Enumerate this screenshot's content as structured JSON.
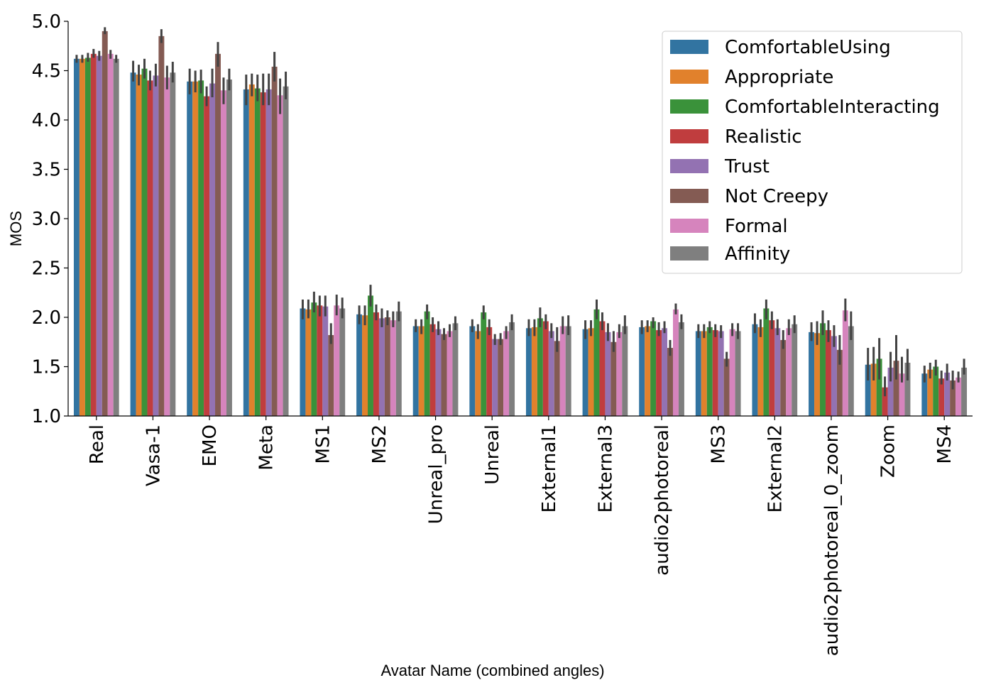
{
  "chart_data": {
    "type": "bar",
    "title": "",
    "xlabel": "Avatar Name (combined angles)",
    "ylabel": "MOS",
    "ylim": [
      1.0,
      5.0
    ],
    "yticks": [
      "1.0",
      "1.5",
      "2.0",
      "2.5",
      "3.0",
      "3.5",
      "4.0",
      "4.5",
      "5.0"
    ],
    "legend_position": "top-right",
    "categories": [
      "Real",
      "Vasa-1",
      "EMO",
      "Meta",
      "MS1",
      "MS2",
      "Unreal_pro",
      "Unreal",
      "External1",
      "External3",
      "audio2photoreal",
      "MS3",
      "External2",
      "audio2photoreal_0_zoom",
      "Zoom",
      "MS4"
    ],
    "series": [
      {
        "name": "ComfortableUsing",
        "color": "#3274a1",
        "values": [
          4.62,
          4.48,
          4.39,
          4.31,
          2.09,
          2.03,
          1.91,
          1.91,
          1.89,
          1.88,
          1.9,
          1.86,
          1.93,
          1.85,
          1.52,
          1.43
        ],
        "errors": [
          [
            4.58,
            4.66
          ],
          [
            4.39,
            4.6
          ],
          [
            4.26,
            4.52
          ],
          [
            4.15,
            4.46
          ],
          [
            1.98,
            2.18
          ],
          [
            1.93,
            2.12
          ],
          [
            1.85,
            1.98
          ],
          [
            1.85,
            1.98
          ],
          [
            1.81,
            1.98
          ],
          [
            1.78,
            1.97
          ],
          [
            1.83,
            1.97
          ],
          [
            1.79,
            1.93
          ],
          [
            1.84,
            2.04
          ],
          [
            1.76,
            1.95
          ],
          [
            1.36,
            1.69
          ],
          [
            1.34,
            1.51
          ]
        ]
      },
      {
        "name": "Appropriate",
        "color": "#e1812c",
        "values": [
          4.62,
          4.46,
          4.39,
          4.36,
          2.08,
          2.02,
          1.91,
          1.86,
          1.9,
          1.89,
          1.91,
          1.86,
          1.9,
          1.84,
          1.53,
          1.47
        ],
        "errors": [
          [
            4.58,
            4.66
          ],
          [
            4.35,
            4.56
          ],
          [
            4.28,
            4.5
          ],
          [
            4.24,
            4.47
          ],
          [
            1.99,
            2.18
          ],
          [
            1.92,
            2.12
          ],
          [
            1.83,
            1.98
          ],
          [
            1.78,
            1.93
          ],
          [
            1.81,
            1.98
          ],
          [
            1.81,
            1.97
          ],
          [
            1.85,
            1.97
          ],
          [
            1.79,
            1.93
          ],
          [
            1.8,
            1.98
          ],
          [
            1.72,
            1.96
          ],
          [
            1.36,
            1.7
          ],
          [
            1.38,
            1.54
          ]
        ]
      },
      {
        "name": "ComfortableInteracting",
        "color": "#3a923a",
        "values": [
          4.63,
          4.52,
          4.4,
          4.32,
          2.15,
          2.22,
          2.06,
          2.05,
          1.99,
          2.08,
          1.96,
          1.9,
          2.09,
          1.94,
          1.58,
          1.5
        ],
        "errors": [
          [
            4.59,
            4.68
          ],
          [
            4.42,
            4.62
          ],
          [
            4.27,
            4.51
          ],
          [
            4.19,
            4.46
          ],
          [
            2.05,
            2.26
          ],
          [
            2.11,
            2.33
          ],
          [
            1.98,
            2.13
          ],
          [
            1.98,
            2.12
          ],
          [
            1.9,
            2.1
          ],
          [
            1.98,
            2.18
          ],
          [
            1.89,
            2.0
          ],
          [
            1.84,
            1.96
          ],
          [
            1.98,
            2.18
          ],
          [
            1.82,
            2.07
          ],
          [
            1.37,
            1.79
          ],
          [
            1.41,
            1.57
          ]
        ]
      },
      {
        "name": "Realistic",
        "color": "#c03d3e",
        "values": [
          4.67,
          4.4,
          4.24,
          4.28,
          2.12,
          2.05,
          1.93,
          1.9,
          1.96,
          1.96,
          1.87,
          1.87,
          1.97,
          1.87,
          1.29,
          1.38
        ],
        "errors": [
          [
            4.63,
            4.72
          ],
          [
            4.3,
            4.5
          ],
          [
            4.14,
            4.34
          ],
          [
            4.15,
            4.47
          ],
          [
            2.01,
            2.22
          ],
          [
            1.97,
            2.13
          ],
          [
            1.85,
            2.0
          ],
          [
            1.82,
            1.98
          ],
          [
            1.88,
            2.03
          ],
          [
            1.87,
            2.05
          ],
          [
            1.81,
            1.95
          ],
          [
            1.8,
            1.93
          ],
          [
            1.88,
            2.06
          ],
          [
            1.75,
            1.97
          ],
          [
            1.2,
            1.4
          ],
          [
            1.32,
            1.46
          ]
        ]
      },
      {
        "name": "Trust",
        "color": "#9372b2",
        "values": [
          4.65,
          4.45,
          4.37,
          4.31,
          2.11,
          1.99,
          1.88,
          1.78,
          1.86,
          1.85,
          1.89,
          1.86,
          1.89,
          1.81,
          1.49,
          1.44
        ],
        "errors": [
          [
            4.6,
            4.7
          ],
          [
            4.34,
            4.57
          ],
          [
            4.23,
            4.52
          ],
          [
            4.15,
            4.47
          ],
          [
            2.01,
            2.22
          ],
          [
            1.9,
            2.09
          ],
          [
            1.82,
            1.96
          ],
          [
            1.72,
            1.83
          ],
          [
            1.79,
            1.94
          ],
          [
            1.76,
            1.94
          ],
          [
            1.84,
            1.96
          ],
          [
            1.79,
            1.92
          ],
          [
            1.82,
            1.98
          ],
          [
            1.7,
            1.92
          ],
          [
            1.35,
            1.65
          ],
          [
            1.36,
            1.53
          ]
        ]
      },
      {
        "name": "Not Creepy",
        "color": "#845b53",
        "values": [
          4.9,
          4.85,
          4.67,
          4.54,
          1.82,
          2.0,
          1.83,
          1.78,
          1.76,
          1.75,
          1.69,
          1.58,
          1.77,
          1.67,
          1.56,
          1.36
        ],
        "errors": [
          [
            4.87,
            4.94
          ],
          [
            4.78,
            4.92
          ],
          [
            4.54,
            4.79
          ],
          [
            4.39,
            4.69
          ],
          [
            1.73,
            1.94
          ],
          [
            1.92,
            2.07
          ],
          [
            1.77,
            1.89
          ],
          [
            1.72,
            1.84
          ],
          [
            1.65,
            1.9
          ],
          [
            1.65,
            1.86
          ],
          [
            1.61,
            1.77
          ],
          [
            1.5,
            1.65
          ],
          [
            1.68,
            1.87
          ],
          [
            1.52,
            1.82
          ],
          [
            1.37,
            1.82
          ],
          [
            1.27,
            1.46
          ]
        ]
      },
      {
        "name": "Formal",
        "color": "#d684bd",
        "values": [
          4.67,
          4.43,
          4.3,
          4.25,
          2.12,
          1.97,
          1.86,
          1.86,
          1.91,
          1.85,
          2.08,
          1.88,
          1.89,
          2.07,
          1.43,
          1.39
        ],
        "errors": [
          [
            4.62,
            4.71
          ],
          [
            4.31,
            4.55
          ],
          [
            4.16,
            4.43
          ],
          [
            4.06,
            4.42
          ],
          [
            2.02,
            2.23
          ],
          [
            1.9,
            2.06
          ],
          [
            1.8,
            1.93
          ],
          [
            1.78,
            1.91
          ],
          [
            1.83,
            2.01
          ],
          [
            1.79,
            1.93
          ],
          [
            2.03,
            2.14
          ],
          [
            1.81,
            1.94
          ],
          [
            1.82,
            1.98
          ],
          [
            1.96,
            2.19
          ],
          [
            1.34,
            1.6
          ],
          [
            1.34,
            1.45
          ]
        ]
      },
      {
        "name": "Affinity",
        "color": "#7f7f7f",
        "values": [
          4.62,
          4.48,
          4.41,
          4.34,
          2.09,
          2.06,
          1.94,
          1.95,
          1.91,
          1.91,
          1.95,
          1.86,
          1.93,
          1.91,
          1.54,
          1.49
        ],
        "errors": [
          [
            4.58,
            4.66
          ],
          [
            4.38,
            4.59
          ],
          [
            4.3,
            4.52
          ],
          [
            4.21,
            4.49
          ],
          [
            1.99,
            2.2
          ],
          [
            1.96,
            2.16
          ],
          [
            1.87,
            2.01
          ],
          [
            1.87,
            2.03
          ],
          [
            1.82,
            2.02
          ],
          [
            1.83,
            2.02
          ],
          [
            1.88,
            2.03
          ],
          [
            1.78,
            1.94
          ],
          [
            1.84,
            2.02
          ],
          [
            1.77,
            2.06
          ],
          [
            1.36,
            1.68
          ],
          [
            1.42,
            1.58
          ]
        ]
      }
    ]
  }
}
